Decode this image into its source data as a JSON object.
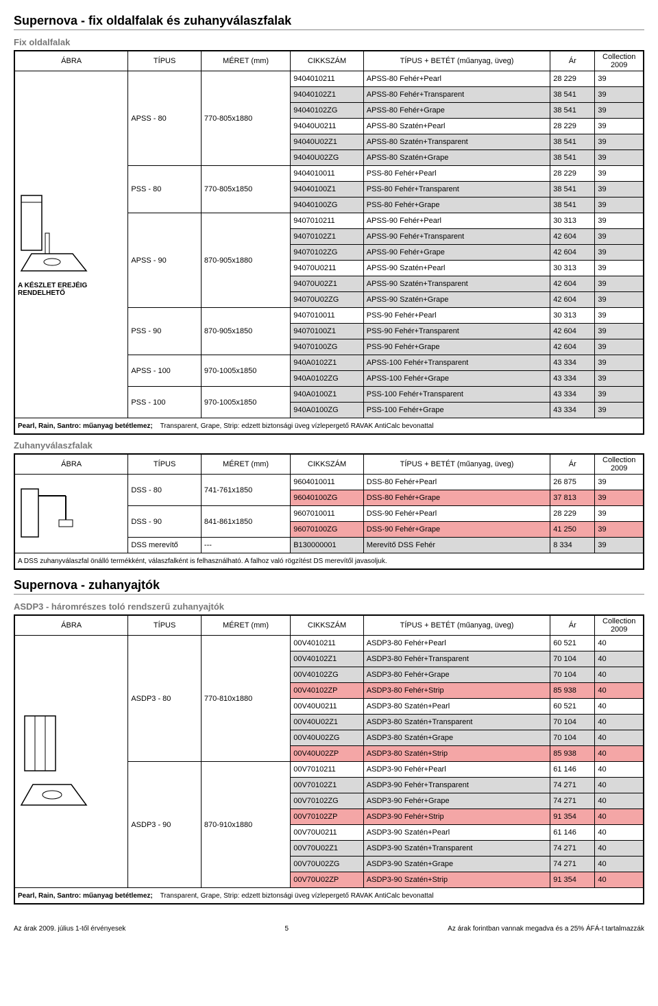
{
  "page": {
    "title1": "Supernova - fix oldalfalak és zuhanyválaszfalak",
    "subtitle1": "Fix oldalfalak",
    "subtitle2": "Zuhanyválaszfalak",
    "title2": "Supernova - zuhanyajtók",
    "subtitle3": "ASDP3 - háromrészes toló rendszerű zuhanyajtók",
    "headers": [
      "ÁBRA",
      "TÍPUS",
      "MÉRET (mm)",
      "CIKKSZÁM",
      "TÍPUS + BETÉT (műanyag, üveg)",
      "Ár",
      "Collection 2009"
    ],
    "note_bold": "Pearl, Rain, Santro: műanyag betétlemez;",
    "note_rest": "Transparent, Grape, Strip: edzett biztonsági üveg vízlepergető RAVAK AntiCalc bevonattal",
    "dss_note": "A DSS zuhanyválaszfal önálló termékként, válaszfalként is felhasználható. A falhoz való rögzítést DS merevítől javasoljuk.",
    "footer_left": "Az árak 2009. július 1-től érvényesek",
    "footer_center": "5",
    "footer_right": "Az árak forintban vannak megadva és a 25% ÁFÁ-t tartalmazzák",
    "abra_label": "A KÉSZLET EREJÉIG RENDELHETŐ",
    "t1_groups": [
      {
        "tipus": "APSS - 80",
        "meret": "770-805x1880",
        "rows": [
          {
            "c": "9404010211",
            "b": "APSS-80 Fehér+Pearl",
            "a": "28 229",
            "col": "39",
            "shade": 0
          },
          {
            "c": "94040102Z1",
            "b": "APSS-80 Fehér+Transparent",
            "a": "38 541",
            "col": "39",
            "shade": 1
          },
          {
            "c": "94040102ZG",
            "b": "APSS-80 Fehér+Grape",
            "a": "38 541",
            "col": "39",
            "shade": 1
          },
          {
            "c": "94040U0211",
            "b": "APSS-80 Szatén+Pearl",
            "a": "28 229",
            "col": "39",
            "shade": 0
          },
          {
            "c": "94040U02Z1",
            "b": "APSS-80 Szatén+Transparent",
            "a": "38 541",
            "col": "39",
            "shade": 1
          },
          {
            "c": "94040U02ZG",
            "b": "APSS-80 Szatén+Grape",
            "a": "38 541",
            "col": "39",
            "shade": 1
          }
        ]
      },
      {
        "tipus": "PSS - 80",
        "meret": "770-805x1850",
        "rows": [
          {
            "c": "9404010011",
            "b": "PSS-80 Fehér+Pearl",
            "a": "28 229",
            "col": "39",
            "shade": 0
          },
          {
            "c": "94040100Z1",
            "b": "PSS-80 Fehér+Transparent",
            "a": "38 541",
            "col": "39",
            "shade": 1
          },
          {
            "c": "94040100ZG",
            "b": "PSS-80 Fehér+Grape",
            "a": "38 541",
            "col": "39",
            "shade": 1
          }
        ]
      },
      {
        "tipus": "APSS - 90",
        "meret": "870-905x1880",
        "rows": [
          {
            "c": "9407010211",
            "b": "APSS-90 Fehér+Pearl",
            "a": "30 313",
            "col": "39",
            "shade": 0
          },
          {
            "c": "94070102Z1",
            "b": "APSS-90 Fehér+Transparent",
            "a": "42 604",
            "col": "39",
            "shade": 1
          },
          {
            "c": "94070102ZG",
            "b": "APSS-90 Fehér+Grape",
            "a": "42 604",
            "col": "39",
            "shade": 1
          },
          {
            "c": "94070U0211",
            "b": "APSS-90 Szatén+Pearl",
            "a": "30 313",
            "col": "39",
            "shade": 0
          },
          {
            "c": "94070U02Z1",
            "b": "APSS-90 Szatén+Transparent",
            "a": "42 604",
            "col": "39",
            "shade": 1
          },
          {
            "c": "94070U02ZG",
            "b": "APSS-90 Szatén+Grape",
            "a": "42 604",
            "col": "39",
            "shade": 1
          }
        ]
      },
      {
        "tipus": "PSS - 90",
        "meret": "870-905x1850",
        "rows": [
          {
            "c": "9407010011",
            "b": "PSS-90 Fehér+Pearl",
            "a": "30 313",
            "col": "39",
            "shade": 0
          },
          {
            "c": "94070100Z1",
            "b": "PSS-90 Fehér+Transparent",
            "a": "42 604",
            "col": "39",
            "shade": 1
          },
          {
            "c": "94070100ZG",
            "b": "PSS-90 Fehér+Grape",
            "a": "42 604",
            "col": "39",
            "shade": 1
          }
        ]
      },
      {
        "tipus": "APSS - 100",
        "meret": "970-1005x1850",
        "rows": [
          {
            "c": "940A0102Z1",
            "b": "APSS-100 Fehér+Transparent",
            "a": "43 334",
            "col": "39",
            "shade": 1
          },
          {
            "c": "940A0102ZG",
            "b": "APSS-100 Fehér+Grape",
            "a": "43 334",
            "col": "39",
            "shade": 1
          }
        ]
      },
      {
        "tipus": "PSS - 100",
        "meret": "970-1005x1850",
        "rows": [
          {
            "c": "940A0100Z1",
            "b": "PSS-100 Fehér+Transparent",
            "a": "43 334",
            "col": "39",
            "shade": 1
          },
          {
            "c": "940A0100ZG",
            "b": "PSS-100 Fehér+Grape",
            "a": "43 334",
            "col": "39",
            "shade": 1
          }
        ]
      }
    ],
    "t2_groups": [
      {
        "tipus": "DSS - 80",
        "meret": "741-761x1850",
        "rows": [
          {
            "c": "9604010011",
            "b": "DSS-80 Fehér+Pearl",
            "a": "26 875",
            "col": "39",
            "shade": 0
          },
          {
            "c": "96040100ZG",
            "b": "DSS-80 Fehér+Grape",
            "a": "37 813",
            "col": "39",
            "shade": 2
          }
        ]
      },
      {
        "tipus": "DSS - 90",
        "meret": "841-861x1850",
        "rows": [
          {
            "c": "9607010011",
            "b": "DSS-90 Fehér+Pearl",
            "a": "28 229",
            "col": "39",
            "shade": 0
          },
          {
            "c": "96070100ZG",
            "b": "DSS-90 Fehér+Grape",
            "a": "41 250",
            "col": "39",
            "shade": 2
          }
        ]
      },
      {
        "tipus": "DSS merevítő",
        "meret": "---",
        "rows": [
          {
            "c": "B130000001",
            "b": "Merevítő DSS Fehér",
            "a": "8 334",
            "col": "39",
            "shade": 1
          }
        ]
      }
    ],
    "t3_groups": [
      {
        "tipus": "ASDP3 - 80",
        "meret": "770-810x1880",
        "rows": [
          {
            "c": "00V4010211",
            "b": "ASDP3-80 Fehér+Pearl",
            "a": "60 521",
            "col": "40",
            "shade": 0
          },
          {
            "c": "00V40102Z1",
            "b": "ASDP3-80 Fehér+Transparent",
            "a": "70 104",
            "col": "40",
            "shade": 1
          },
          {
            "c": "00V40102ZG",
            "b": "ASDP3-80 Fehér+Grape",
            "a": "70 104",
            "col": "40",
            "shade": 1
          },
          {
            "c": "00V40102ZP",
            "b": "ASDP3-80 Fehér+Strip",
            "a": "85 938",
            "col": "40",
            "shade": 2
          },
          {
            "c": "00V40U0211",
            "b": "ASDP3-80 Szatén+Pearl",
            "a": "60 521",
            "col": "40",
            "shade": 0
          },
          {
            "c": "00V40U02Z1",
            "b": "ASDP3-80 Szatén+Transparent",
            "a": "70 104",
            "col": "40",
            "shade": 1
          },
          {
            "c": "00V40U02ZG",
            "b": "ASDP3-80 Szatén+Grape",
            "a": "70 104",
            "col": "40",
            "shade": 1
          },
          {
            "c": "00V40U02ZP",
            "b": "ASDP3-80 Szatén+Strip",
            "a": "85 938",
            "col": "40",
            "shade": 2
          }
        ]
      },
      {
        "tipus": "ASDP3 - 90",
        "meret": "870-910x1880",
        "rows": [
          {
            "c": "00V7010211",
            "b": "ASDP3-90 Fehér+Pearl",
            "a": "61 146",
            "col": "40",
            "shade": 0
          },
          {
            "c": "00V70102Z1",
            "b": "ASDP3-90 Fehér+Transparent",
            "a": "74 271",
            "col": "40",
            "shade": 1
          },
          {
            "c": "00V70102ZG",
            "b": "ASDP3-90 Fehér+Grape",
            "a": "74 271",
            "col": "40",
            "shade": 1
          },
          {
            "c": "00V70102ZP",
            "b": "ASDP3-90 Fehér+Strip",
            "a": "91 354",
            "col": "40",
            "shade": 2
          },
          {
            "c": "00V70U0211",
            "b": "ASDP3-90 Szatén+Pearl",
            "a": "61 146",
            "col": "40",
            "shade": 0
          },
          {
            "c": "00V70U02Z1",
            "b": "ASDP3-90 Szatén+Transparent",
            "a": "74 271",
            "col": "40",
            "shade": 1
          },
          {
            "c": "00V70U02ZG",
            "b": "ASDP3-90 Szatén+Grape",
            "a": "74 271",
            "col": "40",
            "shade": 1
          },
          {
            "c": "00V70U02ZP",
            "b": "ASDP3-90 Szatén+Strip",
            "a": "91 354",
            "col": "40",
            "shade": 2
          }
        ]
      }
    ],
    "colors": {
      "gray": "#d9d9d9",
      "pink": "#f4a6a6"
    }
  }
}
